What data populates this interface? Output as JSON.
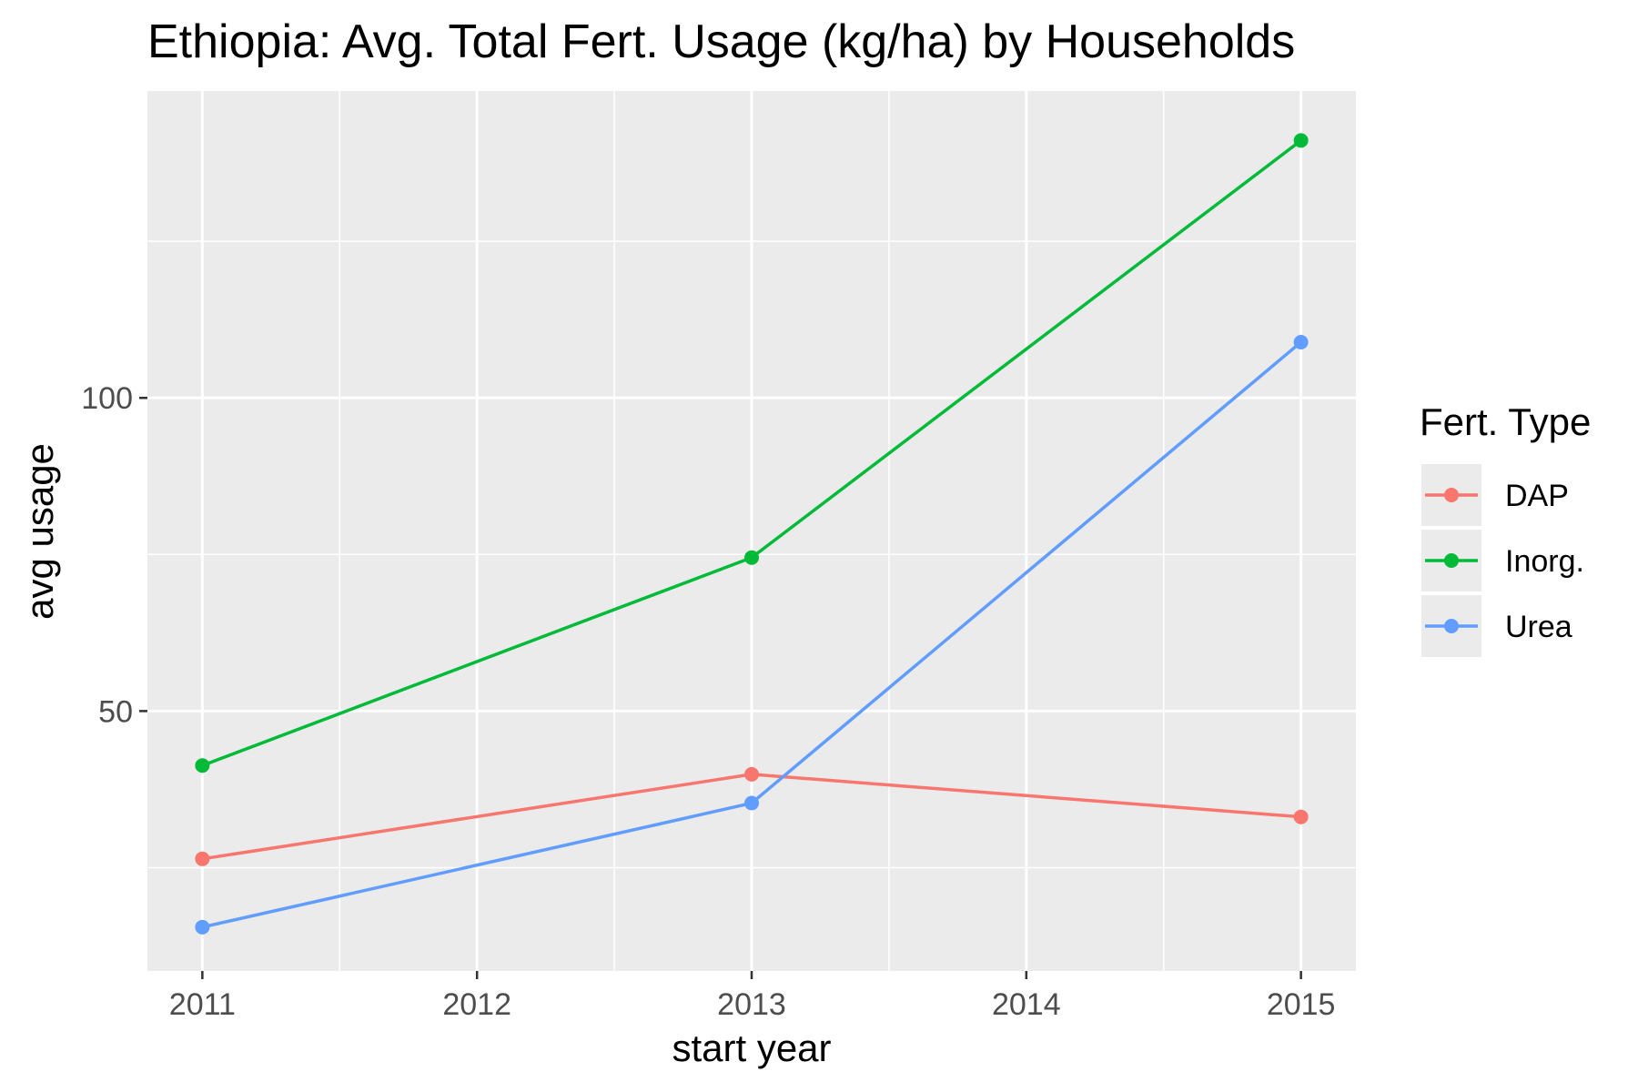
{
  "chart_data": {
    "type": "line",
    "title": "Ethiopia: Avg. Total Fert. Usage (kg/ha) by Households",
    "xlabel": "start year",
    "ylabel": "avg usage",
    "x": [
      2011,
      2013,
      2015
    ],
    "x_ticks": [
      "2011",
      "2012",
      "2013",
      "2014",
      "2015"
    ],
    "y_ticks": [
      "50",
      "100"
    ],
    "xlim": [
      2010.8,
      2015.2
    ],
    "ylim": [
      8.5,
      149
    ],
    "grid": true,
    "legend": {
      "title": "Fert. Type",
      "placement": "right"
    },
    "series": [
      {
        "name": "DAP",
        "color": "#F8766D",
        "values": [
          26.4,
          39.9,
          33.1
        ]
      },
      {
        "name": "Inorg.",
        "color": "#00BA38",
        "values": [
          41.3,
          74.5,
          141.1
        ]
      },
      {
        "name": "Urea",
        "color": "#619CFF",
        "values": [
          15.5,
          35.3,
          108.9
        ]
      }
    ]
  }
}
